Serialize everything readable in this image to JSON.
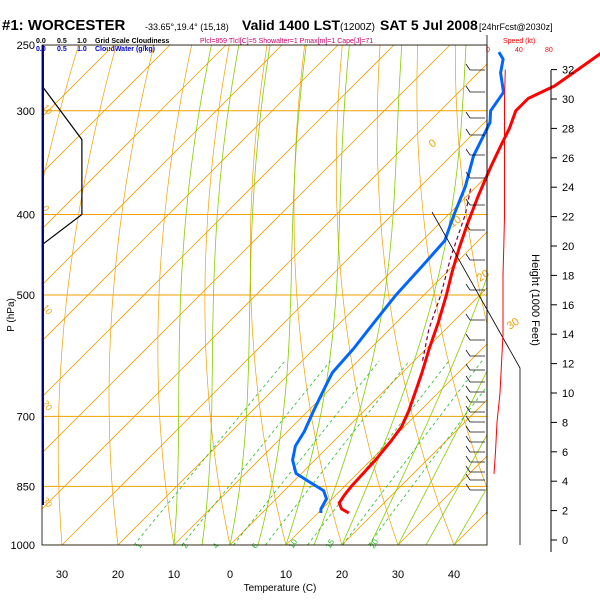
{
  "header": {
    "station": "#1: WORCESTER",
    "coords": "-33.65°,19.4° (15,18)",
    "valid": "Valid 1400 LST",
    "utc": "(1200Z)",
    "date": "SAT 5 Jul 2008",
    "forecast": "[24hrFcst@2030z]"
  },
  "legend": {
    "cloud_scale_ticks": [
      "0.0",
      "0.5",
      "1.0"
    ],
    "cloud_scale_label": "Grid Scale Cloudiness",
    "water_scale_ticks": [
      "0.0",
      "0.5",
      "1.0"
    ],
    "water_scale_label": "CloudWater (g/kg)",
    "indices": "Plcl=859 Tlcl[C]=5 Showalter=1 Pmax[m]=1 Cape[J]=71",
    "speed_label": "Speed (kt)",
    "speed_ticks": [
      "0",
      "40",
      "80"
    ]
  },
  "axes": {
    "ylabel": "P (hPa)",
    "xlabel": "Temperature (C)",
    "right_label": "Height (1000 Feet)",
    "p_ticks": [
      "250",
      "300",
      "400",
      "500",
      "700",
      "850",
      "1000"
    ],
    "t_ticks": [
      "30",
      "20",
      "10",
      "0",
      "10",
      "20",
      "30",
      "40"
    ],
    "h_ticks": [
      "32",
      "30",
      "28",
      "26",
      "24",
      "22",
      "20",
      "18",
      "16",
      "14",
      "12",
      "10",
      "8",
      "6",
      "4",
      "2",
      "0"
    ]
  },
  "isotherm_labels": [
    "0",
    "10",
    "20",
    "30"
  ],
  "dry_adiabat_labels": [
    "10",
    "0",
    "10",
    "20",
    "30"
  ],
  "mixing_ratio_labels": [
    "1",
    "2",
    "4",
    "6",
    "10",
    "15",
    "20"
  ],
  "colors": {
    "temperature": "#ff0000",
    "dewpoint": "#0066ff",
    "parcel": "#800040",
    "isotherm": "#f0a000",
    "adiabat": "#88cc00",
    "mixing_ratio": "#22bb22",
    "cloud_scale": "#0000cc"
  },
  "chart_data": {
    "type": "line",
    "title": "#1: WORCESTER Valid 1400 LST (1200Z) SAT 5 Jul 2008",
    "xlabel": "Temperature (C)",
    "ylabel": "P (hPa)",
    "xlim": [
      -35,
      45
    ],
    "ylim": [
      1000,
      250
    ],
    "series": [
      {
        "name": "temperature",
        "points": [
          [
            915,
            15.5
          ],
          [
            905,
            13.5
          ],
          [
            890,
            12
          ],
          [
            870,
            11.5
          ],
          [
            850,
            11.2
          ],
          [
            820,
            11
          ],
          [
            790,
            10.8
          ],
          [
            750,
            10.2
          ],
          [
            720,
            9.5
          ],
          [
            690,
            8
          ],
          [
            650,
            5.5
          ],
          [
            620,
            3.5
          ],
          [
            580,
            0.5
          ],
          [
            540,
            -2.5
          ],
          [
            500,
            -6
          ],
          [
            470,
            -9
          ],
          [
            440,
            -12
          ],
          [
            410,
            -15
          ],
          [
            380,
            -18
          ],
          [
            350,
            -21
          ],
          [
            330,
            -23
          ],
          [
            315,
            -24.5
          ],
          [
            300,
            -26.5
          ],
          [
            290,
            -26.5
          ],
          [
            280,
            -24
          ],
          [
            265,
            -22.5
          ],
          [
            255,
            -21.5
          ]
        ]
      },
      {
        "name": "dewpoint",
        "points": [
          [
            915,
            10.5
          ],
          [
            905,
            9.8
          ],
          [
            880,
            9
          ],
          [
            860,
            7
          ],
          [
            840,
            3
          ],
          [
            820,
            -1
          ],
          [
            790,
            -4
          ],
          [
            760,
            -6
          ],
          [
            730,
            -7
          ],
          [
            690,
            -9
          ],
          [
            650,
            -11
          ],
          [
            620,
            -12.5
          ],
          [
            580,
            -13
          ],
          [
            540,
            -14
          ],
          [
            500,
            -15
          ],
          [
            460,
            -15.5
          ],
          [
            430,
            -16
          ],
          [
            400,
            -19
          ],
          [
            370,
            -22
          ],
          [
            340,
            -26
          ],
          [
            310,
            -29
          ],
          [
            300,
            -31
          ],
          [
            285,
            -32
          ],
          [
            270,
            -36
          ],
          [
            260,
            -38
          ],
          [
            255,
            -40
          ]
        ]
      },
      {
        "name": "parcel",
        "points": [
          [
            600,
            1.5
          ],
          [
            550,
            -3
          ],
          [
            500,
            -7
          ],
          [
            450,
            -12
          ],
          [
            400,
            -17
          ],
          [
            370,
            -21
          ]
        ]
      }
    ],
    "cloudiness_profile": [
      [
        0,
        280
      ],
      [
        0.7,
        325
      ],
      [
        0.7,
        400
      ],
      [
        0,
        435
      ]
    ],
    "wind_speed_kt": [
      [
        4.5,
        8
      ],
      [
        6,
        10
      ],
      [
        8,
        12
      ],
      [
        10,
        16
      ],
      [
        12,
        18
      ],
      [
        14,
        20
      ],
      [
        16,
        20
      ],
      [
        18,
        20
      ],
      [
        20,
        21
      ],
      [
        22,
        22
      ],
      [
        24,
        22
      ],
      [
        26,
        22
      ],
      [
        28,
        22
      ],
      [
        30,
        22
      ],
      [
        32,
        23
      ]
    ]
  }
}
